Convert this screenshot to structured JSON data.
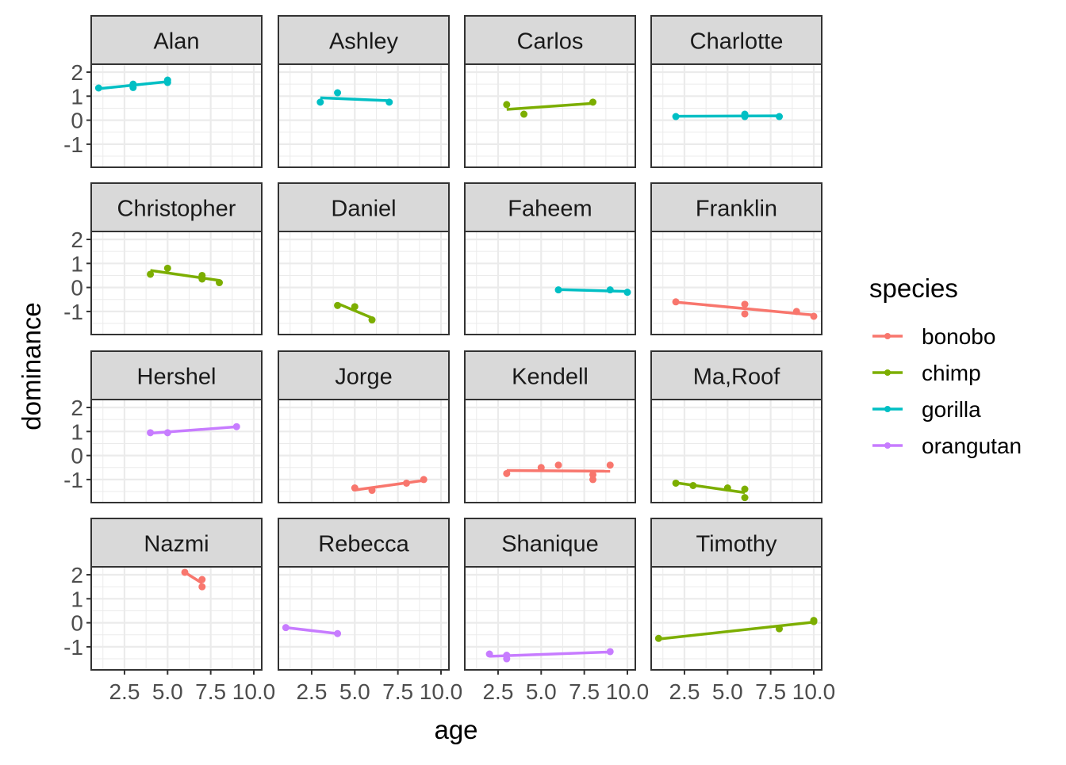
{
  "chart_data": {
    "type": "scatter",
    "subtype": "faceted scatter with linear fit lines",
    "xlabel": "age",
    "ylabel": "dominance",
    "xlim": [
      0.57,
      10.46
    ],
    "ylim": [
      -1.96,
      2.33
    ],
    "x_ticks": [
      2.5,
      5.0,
      7.5,
      10.0
    ],
    "x_tick_labels": [
      "2.5",
      "5.0",
      "7.5",
      "10.0"
    ],
    "y_ticks": [
      2,
      1,
      0,
      -1
    ],
    "y_tick_labels": [
      "2",
      "1",
      "0",
      "-1"
    ],
    "grid": true,
    "legend": {
      "title": "species",
      "placement": "right",
      "entries": [
        {
          "label": "bonobo",
          "color": "#F8766D"
        },
        {
          "label": "chimp",
          "color": "#7CAE00"
        },
        {
          "label": "gorilla",
          "color": "#00BFC4"
        },
        {
          "label": "orangutan",
          "color": "#C77CFF"
        }
      ]
    },
    "facets": [
      {
        "name": "Alan",
        "species": "gorilla",
        "points": [
          [
            1,
            1.34
          ],
          [
            3,
            1.5
          ],
          [
            3,
            1.36
          ],
          [
            5,
            1.67
          ],
          [
            5,
            1.57
          ]
        ]
      },
      {
        "name": "Ashley",
        "species": "gorilla",
        "points": [
          [
            3,
            0.75
          ],
          [
            4,
            1.14
          ],
          [
            7,
            0.75
          ]
        ]
      },
      {
        "name": "Carlos",
        "species": "chimp",
        "points": [
          [
            3,
            0.65
          ],
          [
            4,
            0.25
          ],
          [
            8,
            0.75
          ]
        ]
      },
      {
        "name": "Charlotte",
        "species": "gorilla",
        "points": [
          [
            2,
            0.15
          ],
          [
            6,
            0.25
          ],
          [
            6,
            0.15
          ],
          [
            8,
            0.15
          ]
        ]
      },
      {
        "name": "Christopher",
        "species": "chimp",
        "points": [
          [
            4,
            0.55
          ],
          [
            5,
            0.8
          ],
          [
            7,
            0.5
          ],
          [
            7,
            0.35
          ],
          [
            8,
            0.2
          ]
        ]
      },
      {
        "name": "Daniel",
        "species": "chimp",
        "points": [
          [
            4,
            -0.75
          ],
          [
            5,
            -0.8
          ],
          [
            6,
            -1.35
          ]
        ]
      },
      {
        "name": "Faheem",
        "species": "gorilla",
        "points": [
          [
            6,
            -0.1
          ],
          [
            9,
            -0.1
          ],
          [
            10,
            -0.2
          ]
        ]
      },
      {
        "name": "Franklin",
        "species": "bonobo",
        "points": [
          [
            2,
            -0.6
          ],
          [
            6,
            -0.7
          ],
          [
            6,
            -1.1
          ],
          [
            9,
            -1.0
          ],
          [
            10,
            -1.2
          ]
        ]
      },
      {
        "name": "Hershel",
        "species": "orangutan",
        "points": [
          [
            4,
            0.95
          ],
          [
            5,
            0.95
          ],
          [
            9,
            1.2
          ]
        ]
      },
      {
        "name": "Jorge",
        "species": "bonobo",
        "points": [
          [
            5,
            -1.35
          ],
          [
            6,
            -1.45
          ],
          [
            8,
            -1.15
          ],
          [
            9,
            -1.0
          ]
        ]
      },
      {
        "name": "Kendell",
        "species": "bonobo",
        "points": [
          [
            3,
            -0.75
          ],
          [
            5,
            -0.5
          ],
          [
            6,
            -0.4
          ],
          [
            8,
            -0.8
          ],
          [
            8,
            -1.0
          ],
          [
            9,
            -0.4
          ]
        ]
      },
      {
        "name": "Ma,Roof",
        "species": "chimp",
        "points": [
          [
            2,
            -1.15
          ],
          [
            3,
            -1.25
          ],
          [
            5,
            -1.35
          ],
          [
            6,
            -1.4
          ],
          [
            6,
            -1.75
          ]
        ]
      },
      {
        "name": "Nazmi",
        "species": "bonobo",
        "points": [
          [
            6,
            2.1
          ],
          [
            7,
            1.8
          ],
          [
            7,
            1.5
          ]
        ]
      },
      {
        "name": "Rebecca",
        "species": "orangutan",
        "points": [
          [
            1,
            -0.2
          ],
          [
            4,
            -0.45
          ]
        ]
      },
      {
        "name": "Shanique",
        "species": "orangutan",
        "points": [
          [
            2,
            -1.3
          ],
          [
            3,
            -1.35
          ],
          [
            3,
            -1.5
          ],
          [
            9,
            -1.2
          ]
        ]
      },
      {
        "name": "Timothy",
        "species": "chimp",
        "points": [
          [
            1,
            -0.65
          ],
          [
            8,
            -0.25
          ],
          [
            10,
            0.1
          ],
          [
            10,
            0.05
          ]
        ]
      }
    ]
  }
}
